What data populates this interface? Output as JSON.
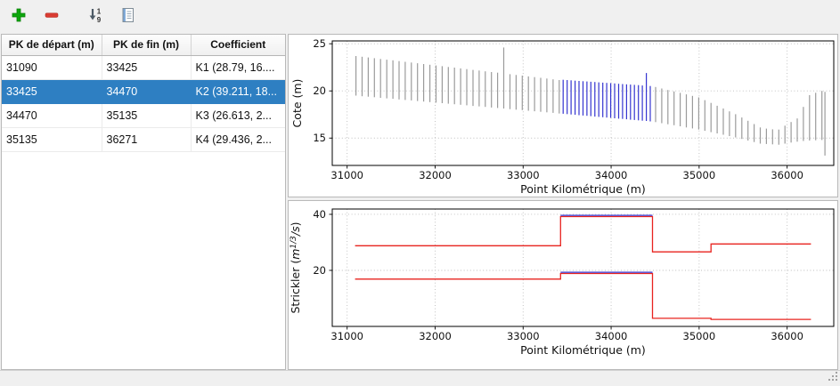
{
  "window": {
    "background": "#f0f0f0",
    "selection_color": "#2e7fc2"
  },
  "toolbar": {
    "buttons": [
      {
        "name": "add",
        "icon": "add-icon",
        "color": "#0da60d"
      },
      {
        "name": "remove",
        "icon": "remove-icon",
        "color": "#da3c32"
      },
      {
        "name": "sort-numeric",
        "icon": "sort-numeric-icon",
        "color": "#4d5a66"
      },
      {
        "name": "report",
        "icon": "report-icon",
        "color": "#7e8b96"
      }
    ]
  },
  "table": {
    "columns": [
      "PK de départ (m)",
      "PK de fin (m)",
      "Coefficient"
    ],
    "rows": [
      {
        "cells": [
          "31090",
          "33425",
          "K1 (28.79, 16...."
        ],
        "selected": false
      },
      {
        "cells": [
          "33425",
          "34470",
          "K2 (39.211, 18..."
        ],
        "selected": true
      },
      {
        "cells": [
          "34470",
          "35135",
          "K3 (26.613, 2..."
        ],
        "selected": false
      },
      {
        "cells": [
          "35135",
          "36271",
          "K4 (29.436, 2..."
        ],
        "selected": false
      }
    ]
  },
  "chart_data": [
    {
      "name": "cote-profile",
      "type": "line",
      "style": "vertical-segments",
      "xlabel": "Point Kilométrique (m)",
      "ylabel": "Cote (m)",
      "ylabel_parts": [
        {
          "t": "Cote (m)"
        }
      ],
      "xlim": [
        30831,
        36530
      ],
      "ylim": [
        12.1,
        25.3
      ],
      "xticks": [
        31000,
        32000,
        33000,
        34000,
        35000,
        36000
      ],
      "yticks": [
        15,
        20,
        25
      ],
      "grid": true,
      "colors": {
        "default": "#9b9b9b",
        "selected": "#3434d0"
      },
      "sections": [
        {
          "color": "#9b9b9b",
          "segments": [
            [
              31100,
              19.5,
              23.7
            ],
            [
              31170,
              19.44,
              23.62
            ],
            [
              31240,
              19.39,
              23.55
            ],
            [
              31310,
              19.33,
              23.47
            ],
            [
              31380,
              19.27,
              23.39
            ],
            [
              31450,
              19.21,
              23.31
            ],
            [
              31520,
              19.16,
              23.24
            ],
            [
              31590,
              19.1,
              23.16
            ],
            [
              31660,
              19.04,
              23.08
            ],
            [
              31730,
              18.99,
              23.01
            ],
            [
              31800,
              18.93,
              22.93
            ],
            [
              31870,
              18.87,
              22.85
            ],
            [
              31940,
              18.81,
              22.77
            ],
            [
              32010,
              18.76,
              22.7
            ],
            [
              32080,
              18.7,
              22.62
            ],
            [
              32150,
              18.64,
              22.54
            ],
            [
              32220,
              18.59,
              22.47
            ],
            [
              32290,
              18.53,
              22.39
            ],
            [
              32360,
              18.47,
              22.31
            ],
            [
              32430,
              18.41,
              22.23
            ],
            [
              32500,
              18.36,
              22.16
            ],
            [
              32570,
              18.3,
              22.08
            ],
            [
              32640,
              18.24,
              22.0
            ],
            [
              32710,
              18.19,
              21.93
            ],
            [
              32780,
              18.13,
              24.6
            ],
            [
              32850,
              18.07,
              21.77
            ],
            [
              32920,
              18.01,
              21.69
            ],
            [
              32990,
              17.96,
              21.62
            ],
            [
              33060,
              17.9,
              21.54
            ],
            [
              33130,
              17.84,
              21.46
            ],
            [
              33200,
              17.79,
              21.39
            ],
            [
              33270,
              17.73,
              21.31
            ],
            [
              33340,
              17.67,
              21.23
            ],
            [
              33410,
              17.61,
              21.15
            ]
          ]
        },
        {
          "color": "#3434d0",
          "segments": [
            [
              33455,
              17.58,
              21.18
            ],
            [
              33500,
              17.54,
              21.15
            ],
            [
              33545,
              17.5,
              21.12
            ],
            [
              33590,
              17.47,
              21.09
            ],
            [
              33635,
              17.43,
              21.06
            ],
            [
              33680,
              17.39,
              21.03
            ],
            [
              33725,
              17.36,
              21.0
            ],
            [
              33770,
              17.32,
              20.97
            ],
            [
              33815,
              17.28,
              20.94
            ],
            [
              33860,
              17.25,
              20.91
            ],
            [
              33905,
              17.21,
              20.88
            ],
            [
              33950,
              17.17,
              20.85
            ],
            [
              33995,
              17.14,
              20.82
            ],
            [
              34040,
              17.1,
              20.79
            ],
            [
              34085,
              17.06,
              20.76
            ],
            [
              34130,
              17.03,
              20.73
            ],
            [
              34175,
              16.99,
              20.7
            ],
            [
              34220,
              16.95,
              20.67
            ],
            [
              34265,
              16.92,
              20.64
            ],
            [
              34310,
              16.88,
              20.61
            ],
            [
              34355,
              16.84,
              20.58
            ],
            [
              34400,
              16.81,
              21.9
            ],
            [
              34445,
              16.77,
              20.52
            ]
          ]
        },
        {
          "color": "#9b9b9b",
          "segments": [
            [
              34505,
              16.69,
              20.42
            ],
            [
              34575,
              16.58,
              20.26
            ],
            [
              34645,
              16.47,
              20.1
            ],
            [
              34715,
              16.36,
              19.94
            ],
            [
              34785,
              16.25,
              19.79
            ],
            [
              34855,
              16.13,
              19.63
            ],
            [
              34925,
              16.02,
              19.47
            ],
            [
              34995,
              15.91,
              19.31
            ],
            [
              35065,
              15.77,
              19.02
            ],
            [
              35135,
              15.63,
              18.73
            ],
            [
              35205,
              15.49,
              18.43
            ],
            [
              35275,
              15.35,
              18.13
            ],
            [
              35345,
              15.21,
              17.83
            ],
            [
              35415,
              15.07,
              17.53
            ],
            [
              35485,
              14.91,
              17.18
            ],
            [
              35555,
              14.74,
              16.83
            ],
            [
              35625,
              14.58,
              16.48
            ],
            [
              35695,
              14.41,
              16.13
            ],
            [
              35765,
              14.37,
              16.0
            ],
            [
              35835,
              14.33,
              15.93
            ],
            [
              35905,
              14.3,
              15.9
            ],
            [
              35975,
              14.41,
              16.31
            ],
            [
              36045,
              14.52,
              16.7
            ],
            [
              36115,
              14.62,
              17.08
            ],
            [
              36185,
              14.69,
              18.3
            ],
            [
              36255,
              14.74,
              19.55
            ],
            [
              36325,
              14.77,
              19.8
            ],
            [
              36395,
              14.8,
              20.0
            ],
            [
              36430,
              13.15,
              19.9
            ]
          ]
        }
      ]
    },
    {
      "name": "strickler-steps",
      "type": "line",
      "style": "step",
      "xlabel": "Point Kilométrique (m)",
      "ylabel": "Strickler (m^{1/3}/s)",
      "ylabel_parts": [
        {
          "t": "Strickler ("
        },
        {
          "t": "m",
          "italic": true
        },
        {
          "t": "1/3",
          "sup": true,
          "italic": true
        },
        {
          "t": "/s",
          "italic": true
        },
        {
          "t": ")"
        }
      ],
      "xlim": [
        30831,
        36530
      ],
      "ylim": [
        0,
        41.9
      ],
      "xticks": [
        31000,
        32000,
        33000,
        34000,
        35000,
        36000
      ],
      "yticks": [
        20,
        40
      ],
      "grid": true,
      "series": [
        {
          "name": "coefficient-1-all-reaches",
          "color": "#e8231f",
          "steps": [
            [
              31090,
              33425,
              28.79
            ],
            [
              33425,
              34470,
              39.211
            ],
            [
              34470,
              35135,
              26.613
            ],
            [
              35135,
              36271,
              29.436
            ]
          ]
        },
        {
          "name": "coefficient-2-all-reaches",
          "color": "#e8231f",
          "steps": [
            [
              31090,
              33425,
              16.9
            ],
            [
              33425,
              34470,
              18.9
            ],
            [
              34470,
              35135,
              2.9
            ],
            [
              35135,
              36271,
              2.5
            ]
          ]
        },
        {
          "name": "coefficient-1-selected-reach",
          "color": "#3434d0",
          "overlay": true,
          "steps": [
            [
              33425,
              34470,
              39.211
            ]
          ]
        },
        {
          "name": "coefficient-2-selected-reach",
          "color": "#3434d0",
          "overlay": true,
          "steps": [
            [
              33425,
              34470,
              18.9
            ]
          ]
        }
      ]
    }
  ]
}
